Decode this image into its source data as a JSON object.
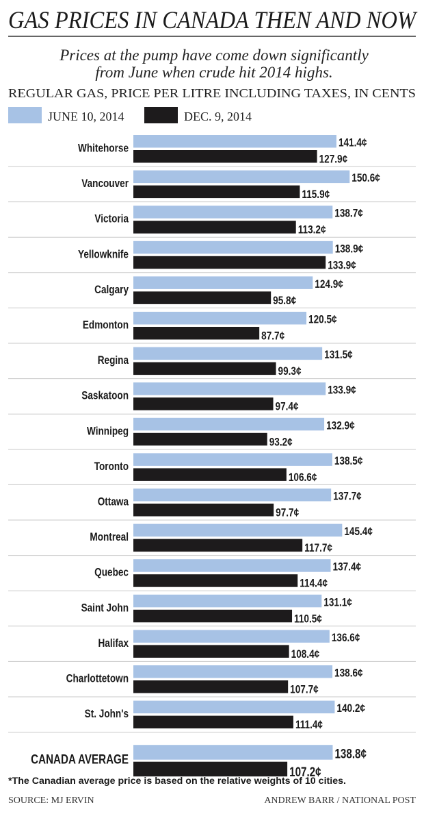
{
  "title": "GAS PRICES IN CANADA THEN AND NOW",
  "subtitle": [
    "Prices at the pump have come down significantly",
    "from June when crude hit 2014 highs."
  ],
  "footnote": "*The Canadian average price is based on the relative weights of 10 cities.",
  "source": "SOURCE: MJ ERVIN",
  "credit": "ANDREW BARR / NATIONAL POST",
  "colors": {
    "june": "#a7c2e5",
    "dec": "#1d1b1c",
    "separator": "#c8c8c8"
  },
  "chart_data": {
    "type": "bar",
    "orientation": "horizontal",
    "title": "REGULAR GAS, PRICE PER LITRE INCLUDING TAXES, IN CENTS",
    "unit_suffix": "¢",
    "categories": [
      "Whitehorse",
      "Vancouver",
      "Victoria",
      "Yellowknife",
      "Calgary",
      "Edmonton",
      "Regina",
      "Saskatoon",
      "Winnipeg",
      "Toronto",
      "Ottawa",
      "Montreal",
      "Quebec",
      "Saint John",
      "Halifax",
      "Charlottetown",
      "St. John's",
      "CANADA AVERAGE"
    ],
    "series": [
      {
        "name": "JUNE 10, 2014",
        "values": [
          141.4,
          150.6,
          138.7,
          138.9,
          124.9,
          120.5,
          131.5,
          133.9,
          132.9,
          138.5,
          137.7,
          145.4,
          137.4,
          131.1,
          136.6,
          138.6,
          140.2,
          138.8
        ]
      },
      {
        "name": "DEC. 9, 2014",
        "values": [
          127.9,
          115.9,
          113.2,
          133.9,
          95.8,
          87.7,
          99.3,
          97.4,
          93.2,
          106.6,
          97.7,
          117.7,
          114.4,
          110.5,
          108.4,
          107.7,
          111.4,
          107.2
        ]
      }
    ],
    "legend": "top-left",
    "grid": false
  }
}
